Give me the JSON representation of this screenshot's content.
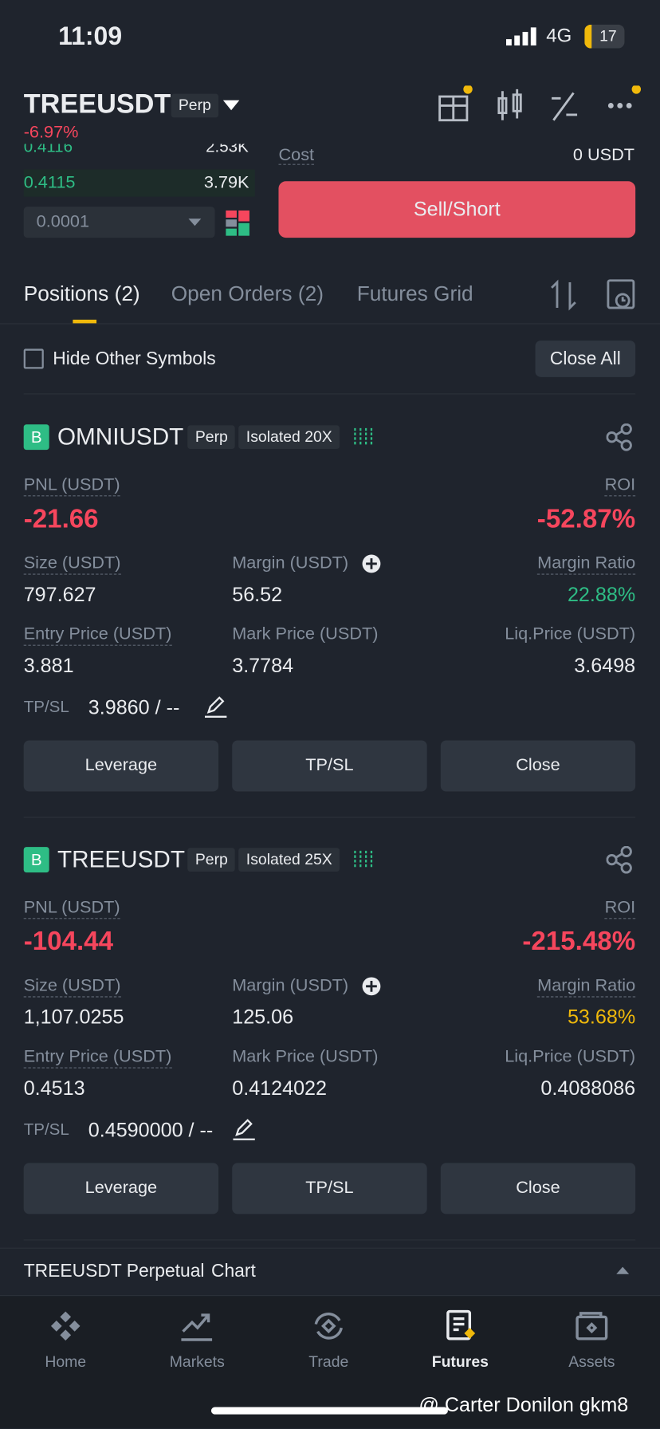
{
  "status": {
    "time": "11:09",
    "network": "4G",
    "battery": "17"
  },
  "header": {
    "symbol": "TREEUSDT",
    "badge": "Perp",
    "change": "-6.97%"
  },
  "orderbook": {
    "rows": [
      [
        "0.4116",
        "2.53K"
      ],
      [
        "0.4115",
        "3.79K"
      ]
    ],
    "step": "0.0001"
  },
  "order": {
    "cost_label": "Cost",
    "cost": "0 USDT",
    "button": "Sell/Short"
  },
  "tabs": [
    "Positions (2)",
    "Open Orders (2)",
    "Futures Grid"
  ],
  "filter": {
    "label": "Hide Other Symbols",
    "close_all": "Close All"
  },
  "positions": [
    {
      "side": "B",
      "symbol": "OMNIUSDT",
      "type": "Perp",
      "mode": "Isolated 20X",
      "pnl_label": "PNL (USDT)",
      "pnl": "-21.66",
      "roi_label": "ROI",
      "roi": "-52.87%",
      "size_label": "Size (USDT)",
      "size": "797.627",
      "margin_label": "Margin (USDT)",
      "margin": "56.52",
      "ratio_label": "Margin Ratio",
      "ratio": "22.88%",
      "entry_label": "Entry Price (USDT)",
      "entry": "3.881",
      "mark_label": "Mark Price (USDT)",
      "mark": "3.7784",
      "liq_label": "Liq.Price (USDT)",
      "liq": "3.6498",
      "tpsl_label": "TP/SL",
      "tpsl": "3.9860 / --",
      "buttons": [
        "Leverage",
        "TP/SL",
        "Close"
      ]
    },
    {
      "side": "B",
      "symbol": "TREEUSDT",
      "type": "Perp",
      "mode": "Isolated 25X",
      "pnl_label": "PNL (USDT)",
      "pnl": "-104.44",
      "roi_label": "ROI",
      "roi": "-215.48%",
      "size_label": "Size (USDT)",
      "size": "1,107.0255",
      "margin_label": "Margin (USDT)",
      "margin": "125.06",
      "ratio_label": "Margin Ratio",
      "ratio": "53.68%",
      "entry_label": "Entry Price (USDT)",
      "entry": "0.4513",
      "mark_label": "Mark Price (USDT)",
      "mark": "0.4124022",
      "liq_label": "Liq.Price (USDT)",
      "liq": "0.4088086",
      "tpsl_label": "TP/SL",
      "tpsl": "0.4590000 / --",
      "buttons": [
        "Leverage",
        "TP/SL",
        "Close"
      ]
    }
  ],
  "chart_bar": {
    "label": "TREEUSDT Perpetual",
    "link": "Chart"
  },
  "nav": [
    "Home",
    "Markets",
    "Trade",
    "Futures",
    "Assets"
  ],
  "watermark": "@ Carter Donilon gkm8"
}
